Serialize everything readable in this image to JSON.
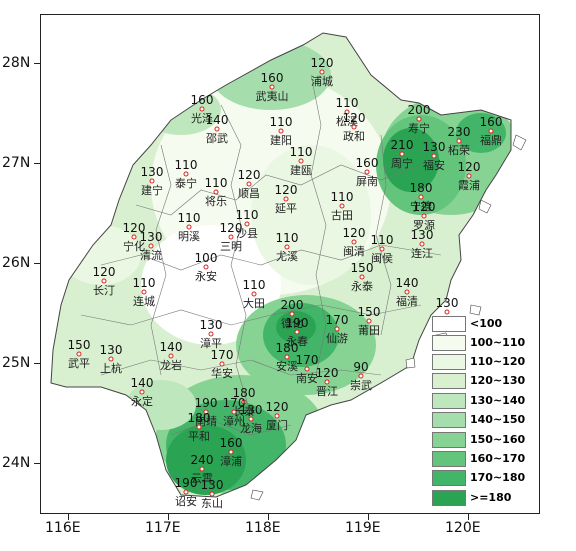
{
  "map": {
    "y_axis_labels": [
      "28N",
      "27N",
      "26N",
      "25N",
      "24N"
    ],
    "x_axis_labels": [
      "116E",
      "117E",
      "118E",
      "119E",
      "120E"
    ]
  },
  "legend": [
    {
      "label": "<100",
      "color": "#ffffff"
    },
    {
      "label": "100~110",
      "color": "#f5fbef"
    },
    {
      "label": "110~120",
      "color": "#eaf7e2"
    },
    {
      "label": "120~130",
      "color": "#d8f0d0"
    },
    {
      "label": "130~140",
      "color": "#bfe7bd"
    },
    {
      "label": "140~150",
      "color": "#a5deac"
    },
    {
      "label": "150~160",
      "color": "#86d394"
    },
    {
      "label": "160~170",
      "color": "#63c47c"
    },
    {
      "label": "170~180",
      "color": "#43b568"
    },
    {
      "label": ">=180",
      "color": "#2aa453"
    }
  ],
  "stations": [
    {
      "value": "120",
      "name": "浦城",
      "lon": 118.53,
      "lat": 27.92
    },
    {
      "value": "160",
      "name": "武夷山",
      "lon": 118.03,
      "lat": 27.77
    },
    {
      "value": "160",
      "name": "光泽",
      "lon": 117.33,
      "lat": 27.55
    },
    {
      "value": "140",
      "name": "邵武",
      "lon": 117.48,
      "lat": 27.35
    },
    {
      "value": "110",
      "name": "建阳",
      "lon": 118.12,
      "lat": 27.33
    },
    {
      "value": "110",
      "name": "松溪",
      "lon": 118.78,
      "lat": 27.52
    },
    {
      "value": "120",
      "name": "政和",
      "lon": 118.85,
      "lat": 27.37
    },
    {
      "value": "200",
      "name": "寿宁",
      "lon": 119.5,
      "lat": 27.45
    },
    {
      "value": "230",
      "name": "柘荣",
      "lon": 119.9,
      "lat": 27.23
    },
    {
      "value": "160",
      "name": "福鼎",
      "lon": 120.22,
      "lat": 27.33
    },
    {
      "value": "210",
      "name": "周宁",
      "lon": 119.33,
      "lat": 27.1
    },
    {
      "value": "130",
      "name": "福安",
      "lon": 119.65,
      "lat": 27.08
    },
    {
      "value": "110",
      "name": "建瓯",
      "lon": 118.32,
      "lat": 27.03
    },
    {
      "value": "160",
      "name": "屏南",
      "lon": 118.98,
      "lat": 26.92
    },
    {
      "value": "120",
      "name": "霞浦",
      "lon": 120.0,
      "lat": 26.88
    },
    {
      "value": "130",
      "name": "建宁",
      "lon": 116.83,
      "lat": 26.83
    },
    {
      "value": "110",
      "name": "泰宁",
      "lon": 117.17,
      "lat": 26.9
    },
    {
      "value": "110",
      "name": "将乐",
      "lon": 117.47,
      "lat": 26.72
    },
    {
      "value": "120",
      "name": "顺昌",
      "lon": 117.8,
      "lat": 26.8
    },
    {
      "value": "120",
      "name": "延平",
      "lon": 118.17,
      "lat": 26.65
    },
    {
      "value": "180",
      "name": "宁德",
      "lon": 119.52,
      "lat": 26.67
    },
    {
      "value": "110",
      "name": "古田",
      "lon": 118.73,
      "lat": 26.58
    },
    {
      "value": "110",
      "name": "明溪",
      "lon": 117.2,
      "lat": 26.37
    },
    {
      "value": "110",
      "name": "沙县",
      "lon": 117.78,
      "lat": 26.4
    },
    {
      "value": "120",
      "name": "宁化",
      "lon": 116.65,
      "lat": 26.27
    },
    {
      "value": "130",
      "name": "清流",
      "lon": 116.82,
      "lat": 26.18
    },
    {
      "value": "120",
      "name": "三明",
      "lon": 117.62,
      "lat": 26.27
    },
    {
      "value": "110",
      "name": "尤溪",
      "lon": 118.18,
      "lat": 26.17
    },
    {
      "value": "120",
      "name": "闽清",
      "lon": 118.85,
      "lat": 26.22
    },
    {
      "value": "110",
      "name": "闽侯",
      "lon": 119.13,
      "lat": 26.15
    },
    {
      "value": "130",
      "name": "连江",
      "lon": 119.53,
      "lat": 26.2
    },
    {
      "value": "120",
      "name": "罗源",
      "lon": 119.55,
      "lat": 26.48
    },
    {
      "value": "100",
      "name": "永安",
      "lon": 117.37,
      "lat": 25.97
    },
    {
      "value": "120",
      "name": "长汀",
      "lon": 116.35,
      "lat": 25.83
    },
    {
      "value": "110",
      "name": "连城",
      "lon": 116.75,
      "lat": 25.72
    },
    {
      "value": "110",
      "name": "大田",
      "lon": 117.85,
      "lat": 25.7
    },
    {
      "value": "150",
      "name": "永泰",
      "lon": 118.93,
      "lat": 25.87
    },
    {
      "value": "140",
      "name": "福清",
      "lon": 119.38,
      "lat": 25.72
    },
    {
      "value": "130",
      "name": "平潭",
      "lon": 119.78,
      "lat": 25.52
    },
    {
      "value": "200",
      "name": "德化",
      "lon": 118.23,
      "lat": 25.5
    },
    {
      "value": "190",
      "name": "永春",
      "lon": 118.28,
      "lat": 25.32
    },
    {
      "value": "170",
      "name": "仙游",
      "lon": 118.68,
      "lat": 25.35
    },
    {
      "value": "150",
      "name": "莆田",
      "lon": 119.0,
      "lat": 25.43
    },
    {
      "value": "130",
      "name": "漳平",
      "lon": 117.42,
      "lat": 25.3
    },
    {
      "value": "150",
      "name": "武平",
      "lon": 116.1,
      "lat": 25.1
    },
    {
      "value": "130",
      "name": "上杭",
      "lon": 116.42,
      "lat": 25.05
    },
    {
      "value": "140",
      "name": "龙岩",
      "lon": 117.02,
      "lat": 25.08
    },
    {
      "value": "170",
      "name": "华安",
      "lon": 117.53,
      "lat": 25.0
    },
    {
      "value": "180",
      "name": "安溪",
      "lon": 118.18,
      "lat": 25.07
    },
    {
      "value": "170",
      "name": "南安",
      "lon": 118.38,
      "lat": 24.95
    },
    {
      "value": "120",
      "name": "晋江",
      "lon": 118.58,
      "lat": 24.82
    },
    {
      "value": "90",
      "name": "崇武",
      "lon": 118.92,
      "lat": 24.88
    },
    {
      "value": "140",
      "name": "永定",
      "lon": 116.73,
      "lat": 24.72
    },
    {
      "value": "190",
      "name": "南靖",
      "lon": 117.37,
      "lat": 24.52
    },
    {
      "value": "180",
      "name": "长泰",
      "lon": 117.75,
      "lat": 24.62
    },
    {
      "value": "170",
      "name": "漳州",
      "lon": 117.65,
      "lat": 24.52
    },
    {
      "value": "130",
      "name": "龙海",
      "lon": 117.82,
      "lat": 24.45
    },
    {
      "value": "120",
      "name": "厦门",
      "lon": 118.08,
      "lat": 24.48
    },
    {
      "value": "180",
      "name": "平和",
      "lon": 117.3,
      "lat": 24.37
    },
    {
      "value": "160",
      "name": "漳浦",
      "lon": 117.62,
      "lat": 24.12
    },
    {
      "value": "240",
      "name": "云霄",
      "lon": 117.33,
      "lat": 23.95
    },
    {
      "value": "190",
      "name": "诏安",
      "lon": 117.17,
      "lat": 23.72
    },
    {
      "value": "130",
      "name": "东山",
      "lon": 117.43,
      "lat": 23.7
    }
  ]
}
